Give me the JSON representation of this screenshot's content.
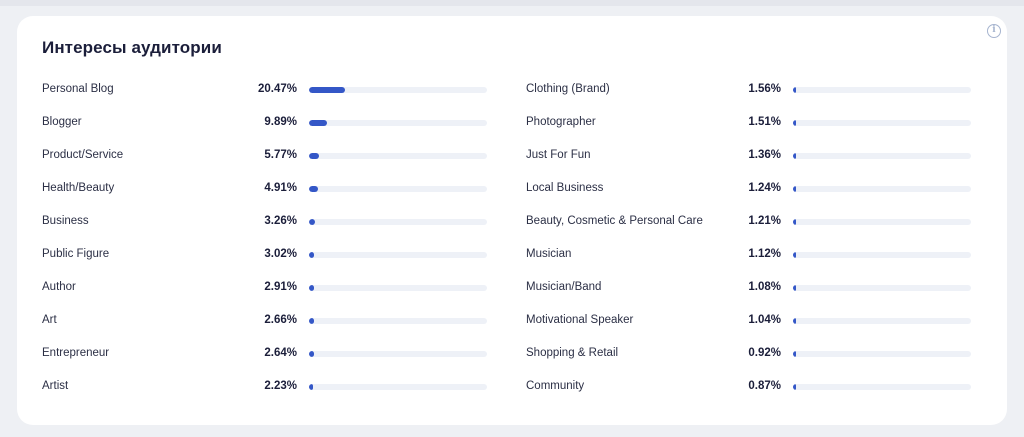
{
  "widget": {
    "title": "Интересы аудитории",
    "info_icon": "info-icon",
    "bar_scale_max_percent": 100,
    "accent_color": "#3457c7",
    "track_color": "#eef1f7"
  },
  "interests_left": [
    {
      "label": "Personal Blog",
      "percent": "20.47%",
      "value": 20.47
    },
    {
      "label": "Blogger",
      "percent": "9.89%",
      "value": 9.89
    },
    {
      "label": "Product/Service",
      "percent": "5.77%",
      "value": 5.77
    },
    {
      "label": "Health/Beauty",
      "percent": "4.91%",
      "value": 4.91
    },
    {
      "label": "Business",
      "percent": "3.26%",
      "value": 3.26
    },
    {
      "label": "Public Figure",
      "percent": "3.02%",
      "value": 3.02
    },
    {
      "label": "Author",
      "percent": "2.91%",
      "value": 2.91
    },
    {
      "label": "Art",
      "percent": "2.66%",
      "value": 2.66
    },
    {
      "label": "Entrepreneur",
      "percent": "2.64%",
      "value": 2.64
    },
    {
      "label": "Artist",
      "percent": "2.23%",
      "value": 2.23
    }
  ],
  "interests_right": [
    {
      "label": "Clothing (Brand)",
      "percent": "1.56%",
      "value": 1.56
    },
    {
      "label": "Photographer",
      "percent": "1.51%",
      "value": 1.51
    },
    {
      "label": "Just For Fun",
      "percent": "1.36%",
      "value": 1.36
    },
    {
      "label": "Local Business",
      "percent": "1.24%",
      "value": 1.24
    },
    {
      "label": "Beauty, Cosmetic & Personal Care",
      "percent": "1.21%",
      "value": 1.21
    },
    {
      "label": "Musician",
      "percent": "1.12%",
      "value": 1.12
    },
    {
      "label": "Musician/Band",
      "percent": "1.08%",
      "value": 1.08
    },
    {
      "label": "Motivational Speaker",
      "percent": "1.04%",
      "value": 1.04
    },
    {
      "label": "Shopping & Retail",
      "percent": "0.92%",
      "value": 0.92
    },
    {
      "label": "Community",
      "percent": "0.87%",
      "value": 0.87
    }
  ]
}
